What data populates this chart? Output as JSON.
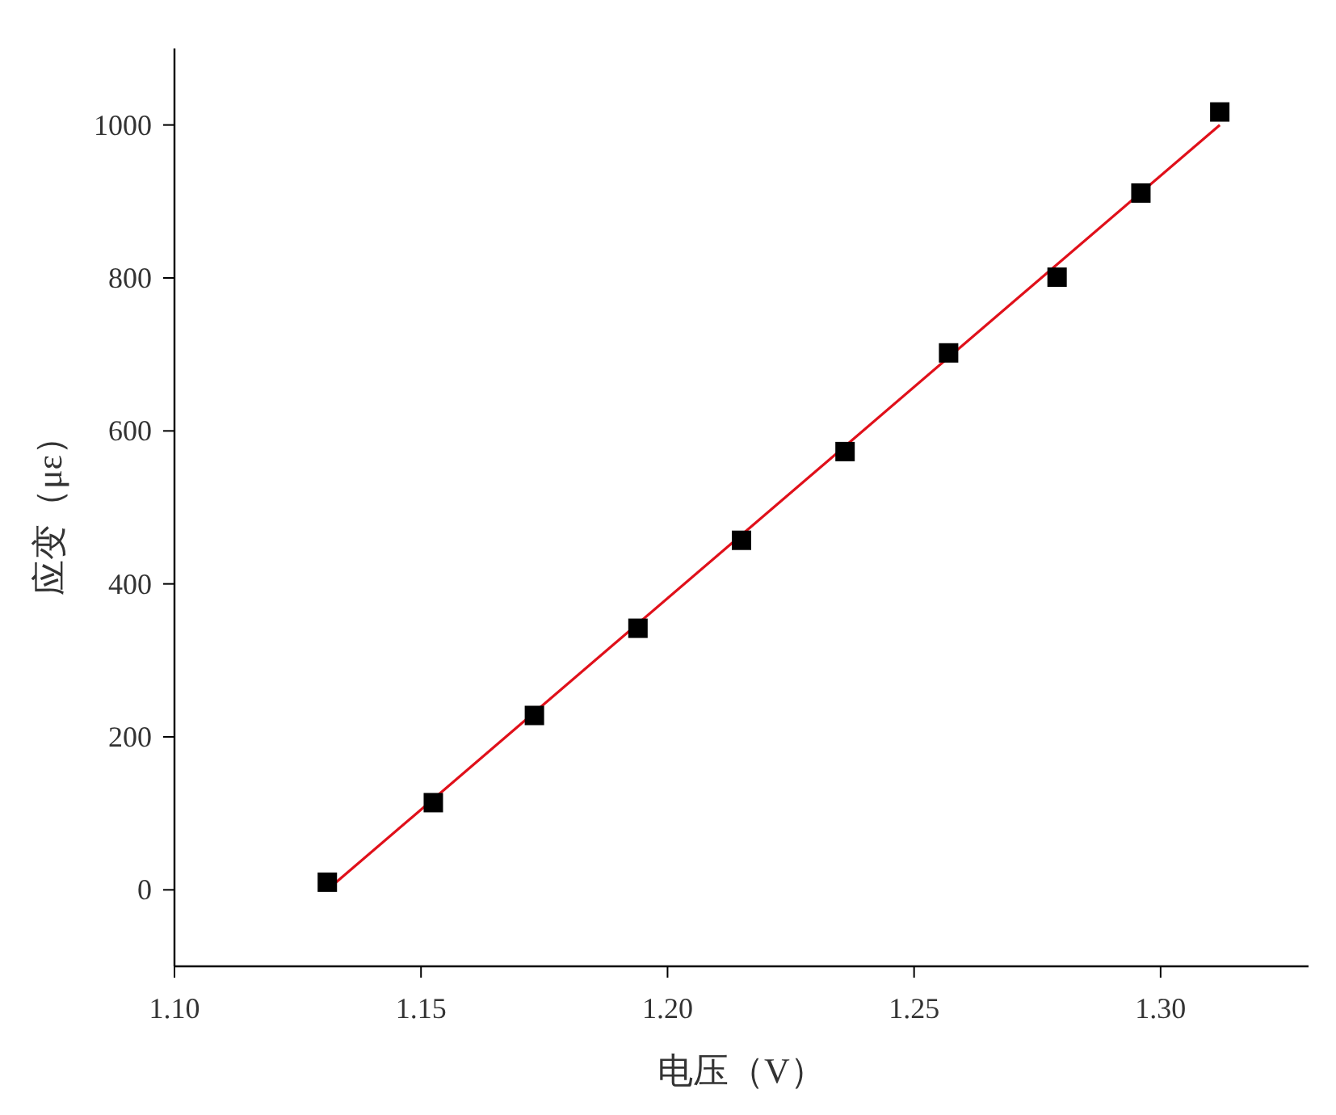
{
  "chart_data": {
    "type": "scatter",
    "xlabel": "电压（V）",
    "ylabel": "应变（με）",
    "xlim": [
      1.1,
      1.33
    ],
    "ylim": [
      -100,
      1100
    ],
    "xticks": [
      {
        "value": 1.1,
        "label": "1.10"
      },
      {
        "value": 1.15,
        "label": "1.15"
      },
      {
        "value": 1.2,
        "label": "1.20"
      },
      {
        "value": 1.25,
        "label": "1.25"
      },
      {
        "value": 1.3,
        "label": "1.30"
      }
    ],
    "yticks": [
      0,
      200,
      400,
      600,
      800,
      1000
    ],
    "series": [
      {
        "marker": "square",
        "color": "#000000",
        "x": [
          1.131,
          1.1525,
          1.173,
          1.194,
          1.215,
          1.236,
          1.257,
          1.279,
          1.296,
          1.312
        ],
        "values": [
          10,
          114,
          228,
          342,
          457,
          573,
          702,
          801,
          911,
          1017
        ]
      },
      {
        "type": "line",
        "color": "#e0101a",
        "x": [
          1.131,
          1.312
        ],
        "values": [
          0,
          1000
        ]
      }
    ]
  }
}
